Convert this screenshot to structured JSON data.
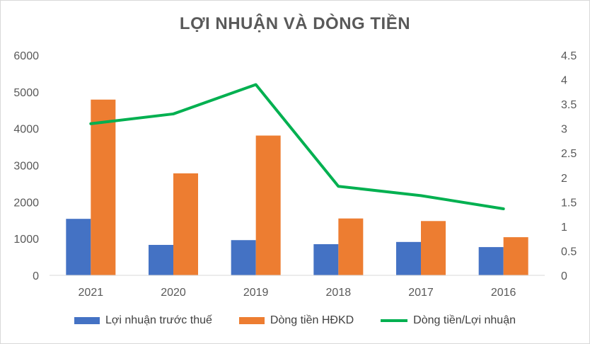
{
  "chart_data": {
    "type": "bar",
    "title": "LỢI NHUẬN VÀ DÒNG TIỀN",
    "categories": [
      "2021",
      "2020",
      "2019",
      "2018",
      "2017",
      "2016"
    ],
    "series": [
      {
        "name": "Lợi nhuận trước thuế",
        "type": "bar",
        "axis": "left",
        "color": "#4472C4",
        "values": [
          1540,
          830,
          960,
          850,
          910,
          770
        ]
      },
      {
        "name": "Dòng tiền HĐKD",
        "type": "bar",
        "axis": "left",
        "color": "#ED7D31",
        "values": [
          4790,
          2780,
          3810,
          1550,
          1480,
          1040
        ]
      },
      {
        "name": "Dòng tiền/Lợi nhuận",
        "type": "line",
        "axis": "right",
        "color": "#00B050",
        "values": [
          3.1,
          3.3,
          3.9,
          1.82,
          1.63,
          1.36
        ]
      }
    ],
    "y_left": {
      "min": 0,
      "max": 6000,
      "ticks": [
        "0",
        "1000",
        "2000",
        "3000",
        "4000",
        "5000",
        "6000"
      ]
    },
    "y_right": {
      "min": 0,
      "max": 4.5,
      "ticks": [
        "0",
        "0.5",
        "1",
        "1.5",
        "2",
        "2.5",
        "3",
        "3.5",
        "4",
        "4.5"
      ]
    },
    "grid": false,
    "legend": "bottom"
  }
}
